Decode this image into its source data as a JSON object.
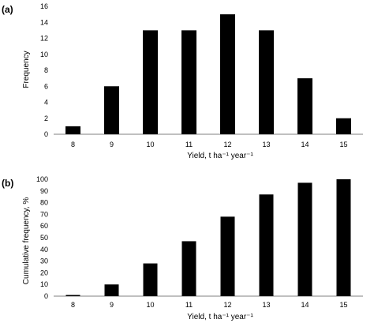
{
  "chart_data": [
    {
      "panel_label": "(a)",
      "type": "bar",
      "categories": [
        "8",
        "9",
        "10",
        "11",
        "12",
        "13",
        "14",
        "15"
      ],
      "values": [
        1,
        6,
        13,
        13,
        15,
        13,
        7,
        2
      ],
      "xlabel": "Yield, t ha⁻¹ year⁻¹",
      "ylabel": "Frequency",
      "ylim": [
        0,
        16
      ],
      "yticks": [
        0,
        2,
        4,
        6,
        8,
        10,
        12,
        14,
        16
      ],
      "grid": false,
      "bar_color": "#000000"
    },
    {
      "panel_label": "(b)",
      "type": "bar",
      "categories": [
        "8",
        "9",
        "10",
        "11",
        "12",
        "13",
        "14",
        "15"
      ],
      "values": [
        1,
        10,
        28,
        47,
        68,
        87,
        97,
        100
      ],
      "xlabel": "Yield, t ha⁻¹ year⁻¹",
      "ylabel": "Cumulative frequency, %",
      "ylim": [
        0,
        100
      ],
      "yticks": [
        0,
        10,
        20,
        30,
        40,
        50,
        60,
        70,
        80,
        90,
        100
      ],
      "grid": false,
      "bar_color": "#000000"
    }
  ]
}
